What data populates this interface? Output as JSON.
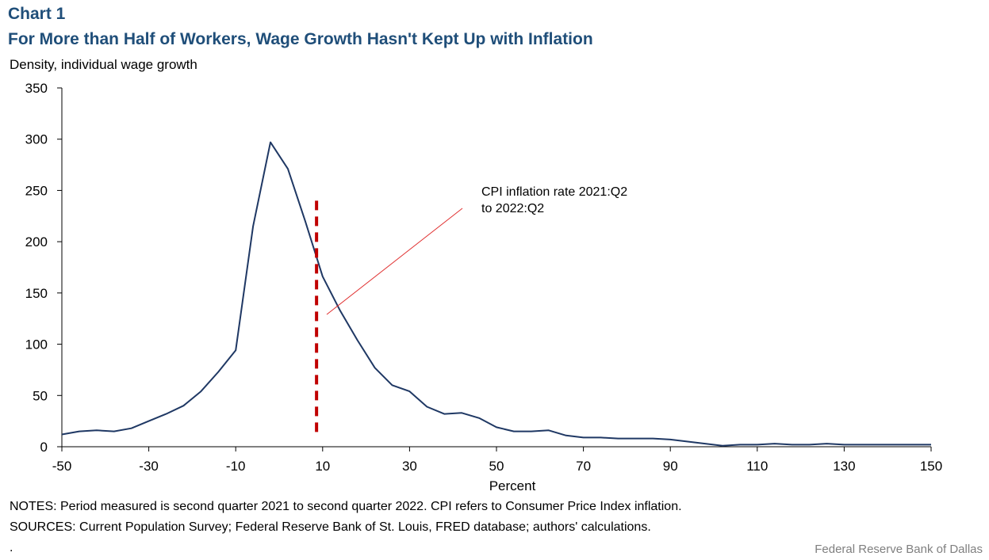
{
  "header": {
    "chart_number": "Chart 1",
    "title": "For More than Half of Workers, Wage Growth Hasn't Kept Up with Inflation",
    "y_axis_label": "Density, individual  wage growth"
  },
  "footer": {
    "notes": "NOTES: Period measured is second quarter 2021 to second quarter 2022. CPI refers to Consumer Price Index inflation.",
    "sources": "SOURCES: Current Population Survey; Federal Reserve Bank of St. Louis, FRED database; authors' calculations.",
    "trailing": ".",
    "credit": "Federal Reserve  Bank of Dallas"
  },
  "chart_data": {
    "type": "line",
    "title": "For More than Half of Workers, Wage Growth Hasn't Kept Up with Inflation",
    "xlabel": "Percent",
    "ylabel": "Density, individual  wage growth",
    "xlim": [
      -50,
      150
    ],
    "ylim": [
      0,
      350
    ],
    "x_ticks": [
      -50,
      -30,
      -10,
      10,
      30,
      50,
      70,
      90,
      110,
      130,
      150
    ],
    "y_ticks": [
      0,
      50,
      100,
      150,
      200,
      250,
      300,
      350
    ],
    "grid": false,
    "line_color": "#1f3864",
    "series": [
      {
        "x": [
          -50,
          -46,
          -42,
          -38,
          -34,
          -30,
          -26,
          -22,
          -18,
          -14,
          -10,
          -6,
          -2,
          2,
          6,
          10,
          14,
          18,
          22,
          26,
          30,
          34,
          38,
          42,
          46,
          50,
          54,
          58,
          62,
          66,
          70,
          74,
          78,
          82,
          86,
          90,
          94,
          98,
          102,
          106,
          110,
          114,
          118,
          122,
          126,
          130,
          134,
          138,
          142,
          146,
          150
        ],
        "y": [
          12,
          15,
          16,
          15,
          18,
          25,
          32,
          40,
          54,
          73,
          94,
          215,
          297,
          271,
          220,
          166,
          133,
          104,
          77,
          60,
          54,
          39,
          32,
          33,
          28,
          19,
          15,
          15,
          16,
          11,
          9,
          9,
          8,
          8,
          8,
          7,
          5,
          3,
          1,
          2,
          2,
          3,
          2,
          2,
          3,
          2,
          2,
          2,
          2,
          2,
          2
        ]
      }
    ],
    "reference_line": {
      "x": 8.6,
      "y_range": [
        10,
        240
      ],
      "style": "dashed",
      "color": "#c00000"
    },
    "annotation": {
      "lines": [
        "CPI inflation rate 2021:Q2",
        "to 2022:Q2"
      ],
      "leader_color": "#e03030"
    }
  }
}
